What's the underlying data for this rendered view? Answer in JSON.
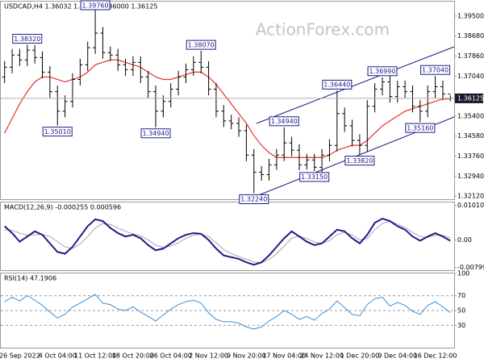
{
  "chart_data": [
    {
      "type": "ohlc",
      "title": "USDCAD,H4  1.36032 1.36247 1.36000 1.36125",
      "watermark": "ActionForex.com",
      "categories": [
        null,
        null,
        "26 Sep 2022",
        null,
        null,
        null,
        null,
        "4 Oct 04:00",
        null,
        null,
        null,
        null,
        "11 Oct 12:00",
        null,
        null,
        null,
        null,
        "18 Oct 20:00",
        null,
        null,
        null,
        null,
        "26 Oct 04:00",
        null,
        null,
        null,
        null,
        "2 Nov 12:00",
        null,
        null,
        null,
        null,
        "9 Nov 20:00",
        null,
        null,
        null,
        null,
        "17 Nov 04:00",
        null,
        null,
        null,
        null,
        "24 Nov 12:00",
        null,
        null,
        null,
        null,
        "1 Dec 20:00",
        null,
        null,
        null,
        null,
        "9 Dec 04:00",
        null,
        null,
        null,
        null,
        "16 Dec 12:00",
        null,
        null
      ],
      "color": "#000000",
      "open": [
        1.37,
        1.374,
        1.379,
        1.377,
        1.381,
        1.378,
        1.372,
        1.364,
        1.356,
        1.36,
        1.369,
        1.375,
        1.382,
        1.388,
        1.38,
        1.379,
        1.375,
        1.373,
        1.376,
        1.37,
        1.364,
        1.356,
        1.36,
        1.365,
        1.37,
        1.373,
        1.376,
        1.374,
        1.365,
        1.356,
        1.352,
        1.351,
        1.348,
        1.338,
        1.331,
        1.33,
        1.334,
        1.338,
        1.343,
        1.34,
        1.334,
        1.336,
        1.333,
        1.338,
        1.342,
        1.355,
        1.35,
        1.344,
        1.342,
        1.358,
        1.365,
        1.368,
        1.362,
        1.366,
        1.364,
        1.358,
        1.356,
        1.364,
        1.366,
        1.363
      ],
      "high": [
        1.3765,
        1.3815,
        1.3815,
        1.3832,
        1.383,
        1.3805,
        1.3745,
        1.3665,
        1.3625,
        1.3715,
        1.3775,
        1.3845,
        1.3976,
        1.3905,
        1.3825,
        1.3815,
        1.3775,
        1.3785,
        1.3785,
        1.3725,
        1.3665,
        1.3625,
        1.3675,
        1.3725,
        1.3755,
        1.3785,
        1.3807,
        1.3765,
        1.3675,
        1.3585,
        1.3545,
        1.3535,
        1.3505,
        1.3405,
        1.3335,
        1.3365,
        1.3405,
        1.3494,
        1.3455,
        1.3425,
        1.3385,
        1.3385,
        1.3405,
        1.3445,
        1.3644,
        1.3575,
        1.3525,
        1.3465,
        1.3605,
        1.3675,
        1.3699,
        1.3705,
        1.3685,
        1.3685,
        1.3665,
        1.3605,
        1.3665,
        1.3704,
        1.3685,
        1.36247
      ],
      "low": [
        1.3675,
        1.3715,
        1.3745,
        1.3745,
        1.3755,
        1.3695,
        1.3615,
        1.3501,
        1.3535,
        1.3575,
        1.3665,
        1.3725,
        1.3795,
        1.3775,
        1.3765,
        1.3725,
        1.3705,
        1.3705,
        1.3675,
        1.3615,
        1.3494,
        1.3535,
        1.3575,
        1.3625,
        1.3675,
        1.3705,
        1.3715,
        1.3625,
        1.3535,
        1.3495,
        1.3485,
        1.3455,
        1.3355,
        1.3224,
        1.3275,
        1.3275,
        1.332,
        1.3355,
        1.3375,
        1.3318,
        1.332,
        1.3315,
        1.3305,
        1.3355,
        1.3395,
        1.3475,
        1.3415,
        1.3382,
        1.3395,
        1.3555,
        1.3625,
        1.3595,
        1.3595,
        1.3615,
        1.3555,
        1.3516,
        1.3535,
        1.3615,
        1.3605,
        1.36
      ],
      "close": [
        1.374,
        1.379,
        1.377,
        1.381,
        1.378,
        1.372,
        1.364,
        1.356,
        1.36,
        1.369,
        1.375,
        1.382,
        1.388,
        1.38,
        1.379,
        1.375,
        1.373,
        1.376,
        1.37,
        1.364,
        1.356,
        1.36,
        1.365,
        1.37,
        1.373,
        1.376,
        1.374,
        1.365,
        1.356,
        1.352,
        1.351,
        1.348,
        1.338,
        1.331,
        1.33,
        1.334,
        1.338,
        1.343,
        1.34,
        1.334,
        1.336,
        1.333,
        1.338,
        1.342,
        1.355,
        1.35,
        1.344,
        1.342,
        1.358,
        1.365,
        1.368,
        1.362,
        1.366,
        1.364,
        1.358,
        1.356,
        1.364,
        1.366,
        1.363,
        1.36125
      ],
      "ma": {
        "color": "#e8312a",
        "values": [
          1.347,
          1.353,
          1.359,
          1.364,
          1.368,
          1.37,
          1.37,
          1.369,
          1.368,
          1.369,
          1.37,
          1.372,
          1.375,
          1.376,
          1.377,
          1.377,
          1.376,
          1.375,
          1.374,
          1.372,
          1.37,
          1.369,
          1.369,
          1.37,
          1.371,
          1.372,
          1.372,
          1.37,
          1.367,
          1.363,
          1.359,
          1.355,
          1.351,
          1.346,
          1.342,
          1.339,
          1.337,
          1.337,
          1.337,
          1.337,
          1.337,
          1.337,
          1.337,
          1.338,
          1.34,
          1.341,
          1.342,
          1.342,
          1.344,
          1.347,
          1.35,
          1.352,
          1.354,
          1.356,
          1.357,
          1.358,
          1.359,
          1.36,
          1.361,
          1.361
        ]
      },
      "current_price": 1.36125,
      "annotations": [
        {
          "value": 1.3832,
          "label": "1.38320"
        },
        {
          "value": 1.3976,
          "label": "1.39760"
        },
        {
          "value": 1.3807,
          "label": "1.38070"
        },
        {
          "value": 1.3501,
          "label": "1.35010"
        },
        {
          "value": 1.3494,
          "label": "1.34940"
        },
        {
          "value": 1.3494,
          "label": "1.34940"
        },
        {
          "value": 1.3224,
          "label": "1.32240"
        },
        {
          "value": 1.3315,
          "label": "1.33150"
        },
        {
          "value": 1.3644,
          "label": "1.36440"
        },
        {
          "value": 1.3382,
          "label": "1.33820"
        },
        {
          "value": 1.3699,
          "label": "1.36990"
        },
        {
          "value": 1.3516,
          "label": "1.35160"
        },
        {
          "value": 1.3704,
          "label": "1.37040"
        }
      ],
      "ylim": [
        1.3199,
        1.4009
      ],
      "yticks": [
        {
          "value": 1.395,
          "label": "1.39500"
        },
        {
          "value": 1.3868,
          "label": "1.38680"
        },
        {
          "value": 1.3786,
          "label": "1.37860"
        },
        {
          "value": 1.3704,
          "label": "1.37040"
        },
        {
          "value": 1.354,
          "label": "1.35400"
        },
        {
          "value": 1.3458,
          "label": "1.34580"
        },
        {
          "value": 1.3376,
          "label": "1.33760"
        },
        {
          "value": 1.3294,
          "label": "1.32940"
        },
        {
          "value": 1.3212,
          "label": "1.32120"
        }
      ]
    },
    {
      "type": "line",
      "title": "MACD(12,26,9) -0.000255 0.000596",
      "series": [
        {
          "color": "#1c1c8a",
          "values": [
            0.004,
            0.002,
            -0.0005,
            0.001,
            0.0025,
            0.0015,
            -0.001,
            -0.0035,
            -0.004,
            -0.002,
            0.001,
            0.004,
            0.006,
            0.0055,
            0.0035,
            0.002,
            0.001,
            0.0015,
            0.0005,
            -0.0015,
            -0.003,
            -0.0025,
            -0.001,
            0.0005,
            0.0015,
            0.002,
            0.0018,
            0.0,
            -0.0025,
            -0.0045,
            -0.005,
            -0.0055,
            -0.0065,
            -0.0072,
            -0.0065,
            -0.0045,
            -0.002,
            0.0005,
            0.0025,
            0.001,
            -0.0005,
            -0.0015,
            -0.001,
            0.001,
            0.003,
            0.0025,
            0.0005,
            -0.001,
            0.0015,
            0.005,
            0.0062,
            0.0055,
            0.004,
            0.003,
            0.001,
            -0.0002,
            0.001,
            0.002,
            0.001,
            -0.000255
          ]
        },
        {
          "color": "#a8a8a8",
          "values": [
            0.003,
            0.0028,
            0.002,
            0.0014,
            0.0015,
            0.0016,
            0.001,
            -0.0005,
            -0.002,
            -0.0025,
            -0.0012,
            0.001,
            0.0035,
            0.0048,
            0.0045,
            0.0035,
            0.0025,
            0.0018,
            0.0012,
            0.0,
            -0.0015,
            -0.0022,
            -0.0018,
            -0.0008,
            0.0005,
            0.0014,
            0.0017,
            0.001,
            -0.0008,
            -0.0028,
            -0.004,
            -0.0048,
            -0.0056,
            -0.0064,
            -0.0066,
            -0.0057,
            -0.004,
            -0.0018,
            0.0005,
            0.0012,
            0.0004,
            -0.0006,
            -0.001,
            -0.0002,
            0.0015,
            0.0022,
            0.0014,
            0.0,
            0.0004,
            0.003,
            0.0048,
            0.0054,
            0.0046,
            0.0036,
            0.0022,
            0.001,
            0.0008,
            0.0014,
            0.0013,
            0.000596
          ]
        }
      ],
      "ylim": [
        -0.0088,
        0.0109
      ],
      "yticks": [
        0.010103,
        {
          "value": 0,
          "label": "0.00"
        },
        -0.007998
      ]
    },
    {
      "type": "line",
      "title": "RSI(14) 47.1906",
      "series": [
        {
          "color": "#3a8fd9",
          "values": [
            62,
            68,
            63,
            70,
            64,
            57,
            48,
            40,
            45,
            55,
            60,
            66,
            72,
            60,
            58,
            52,
            50,
            55,
            48,
            42,
            36,
            44,
            52,
            58,
            62,
            64,
            60,
            47,
            38,
            35,
            35,
            33,
            28,
            25,
            28,
            36,
            42,
            50,
            45,
            38,
            42,
            37,
            46,
            52,
            63,
            54,
            45,
            43,
            58,
            66,
            68,
            56,
            61,
            57,
            49,
            45,
            57,
            62,
            55,
            47.1906
          ]
        }
      ],
      "ylim": [
        0,
        100
      ],
      "yticks": [
        100,
        70,
        50,
        30
      ],
      "grid": true
    }
  ]
}
